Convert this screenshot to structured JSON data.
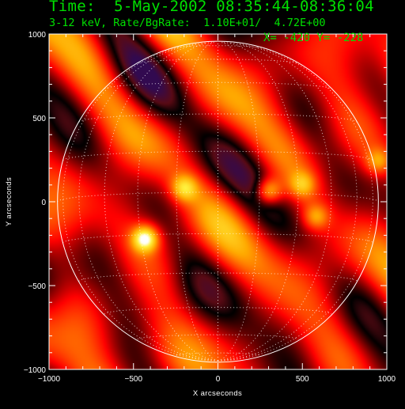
{
  "header": {
    "time_line": "Time:  5-May-2002 08:35:44-08:36:04",
    "energy_line": "3-12 keV, Rate/BgRate:  1.10E+01/  4.72E+00"
  },
  "cursor": {
    "label": "X= -420 Y= -228",
    "x": -420,
    "y": -228
  },
  "chart_data": {
    "type": "heatmap",
    "title": "",
    "xlabel": "X arcseconds",
    "ylabel": "Y arcseconds",
    "xlim": [
      -1000,
      1000
    ],
    "ylim": [
      -1000,
      1000
    ],
    "x_ticks": [
      -1000,
      -500,
      0,
      500,
      1000
    ],
    "y_ticks": [
      -1000,
      -500,
      0,
      500,
      1000
    ],
    "x_tick_labels": [
      "−1000",
      "−500",
      "0",
      "500",
      "1000"
    ],
    "y_tick_labels": [
      "−1000",
      "−500",
      "0",
      "500",
      "1000"
    ],
    "solar_limb_radius_arcsec": 950,
    "heliographic_grid": true,
    "colormap": "red-temperature",
    "colors": {
      "text": "#00e000",
      "limb": "#ffffff",
      "grid": "#ffffff",
      "background": "#000000"
    },
    "bright_sources": [
      {
        "x": -430,
        "y": -220,
        "intensity": 1.0
      },
      {
        "x": 300,
        "y": 60,
        "intensity": 0.85
      },
      {
        "x": -200,
        "y": 80,
        "intensity": 0.65
      },
      {
        "x": 500,
        "y": 100,
        "intensity": 0.5
      },
      {
        "x": 580,
        "y": -90,
        "intensity": 0.55
      },
      {
        "x": 950,
        "y": 240,
        "intensity": 0.5
      }
    ]
  }
}
